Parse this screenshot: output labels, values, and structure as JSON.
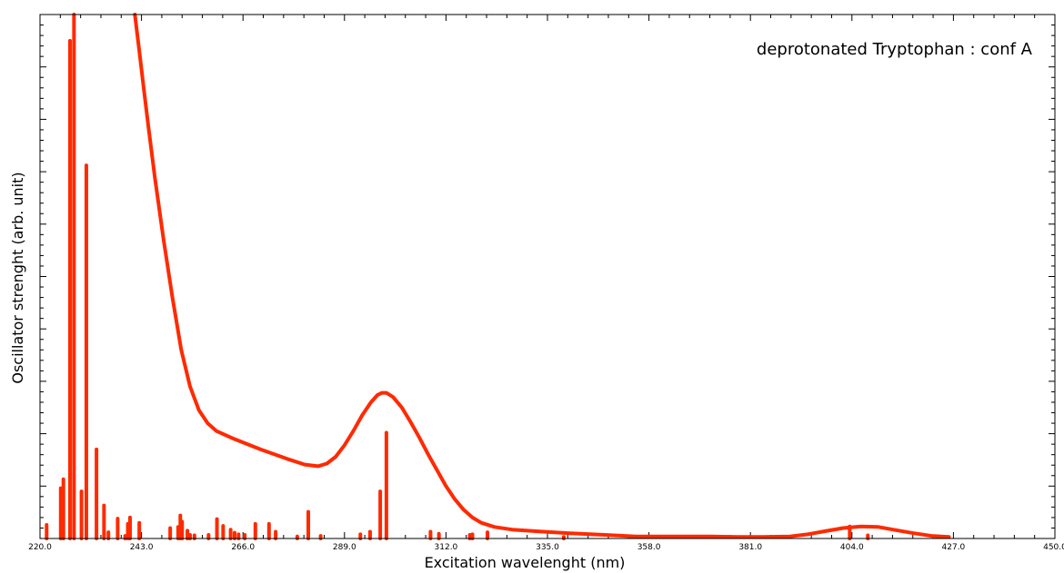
{
  "chart_data": {
    "type": "line",
    "annotation": "deprotonated Tryptophan : conf A",
    "xlabel": "Excitation wavelenght (nm)",
    "ylabel": "Oscillator strenght (arb. unit)",
    "xlim": [
      220,
      450
    ],
    "ylim": [
      0,
      1
    ],
    "x_ticks": [
      "220.0",
      "243.0",
      "266.0",
      "289.0",
      "312.0",
      "335.0",
      "358.0",
      "381.0",
      "404.0",
      "427.0",
      "450.0"
    ],
    "grid": false,
    "color": "#ff2a00",
    "spectrum": {
      "x": [
        241.5,
        242.5,
        243.5,
        244.5,
        246.0,
        248.0,
        250.0,
        252.0,
        254.0,
        256.0,
        258.0,
        260.0,
        264.0,
        270.0,
        276.0,
        280.0,
        283.0,
        285.0,
        287.0,
        289.0,
        291.0,
        293.0,
        295.0,
        296.5,
        297.5,
        298.5,
        300.0,
        302.0,
        304.0,
        306.0,
        308.0,
        310.0,
        312.0,
        314.0,
        316.0,
        318.0,
        320.0,
        323.0,
        327.0,
        332.0,
        340.0,
        348.0,
        355.0,
        360.0,
        366.0,
        372.0,
        378.0,
        384.0,
        390.0,
        394.0,
        398.0,
        402.0,
        406.0,
        410.0,
        414.0,
        418.0,
        422.0,
        426.0
      ],
      "y": [
        1.0,
        0.93,
        0.86,
        0.79,
        0.69,
        0.57,
        0.46,
        0.36,
        0.29,
        0.245,
        0.22,
        0.205,
        0.19,
        0.17,
        0.152,
        0.141,
        0.138,
        0.143,
        0.156,
        0.178,
        0.205,
        0.235,
        0.26,
        0.274,
        0.278,
        0.278,
        0.27,
        0.25,
        0.222,
        0.192,
        0.16,
        0.13,
        0.1,
        0.075,
        0.055,
        0.04,
        0.03,
        0.022,
        0.017,
        0.014,
        0.01,
        0.007,
        0.004,
        0.004,
        0.004,
        0.004,
        0.003,
        0.003,
        0.004,
        0.008,
        0.014,
        0.02,
        0.023,
        0.022,
        0.016,
        0.01,
        0.005,
        0.003
      ]
    },
    "transitions": {
      "x": [
        221.5,
        224.7,
        225.3,
        226.8,
        227.7,
        229.4,
        230.5,
        232.8,
        234.5,
        235.5,
        237.6,
        239.3,
        239.9,
        240.4,
        242.5,
        249.5,
        251.3,
        251.8,
        252.2,
        253.4,
        254.0,
        255.0,
        258.2,
        260.1,
        261.5,
        263.2,
        264.1,
        265.0,
        266.4,
        268.8,
        271.9,
        273.4,
        278.3,
        280.8,
        283.6,
        292.6,
        294.8,
        297.1,
        298.5,
        308.5,
        310.4,
        317.4,
        318.0,
        321.4,
        338.7,
        403.5,
        407.6
      ],
      "y": [
        0.026,
        0.096,
        0.113,
        0.95,
        1.0,
        0.09,
        0.712,
        0.17,
        0.063,
        0.012,
        0.038,
        0.005,
        0.028,
        0.04,
        0.03,
        0.02,
        0.022,
        0.044,
        0.032,
        0.015,
        0.007,
        0.006,
        0.007,
        0.037,
        0.024,
        0.017,
        0.011,
        0.008,
        0.007,
        0.028,
        0.028,
        0.013,
        0.004,
        0.051,
        0.005,
        0.008,
        0.013,
        0.09,
        0.202,
        0.013,
        0.009,
        0.007,
        0.008,
        0.012,
        0.003,
        0.023,
        0.006
      ]
    }
  }
}
